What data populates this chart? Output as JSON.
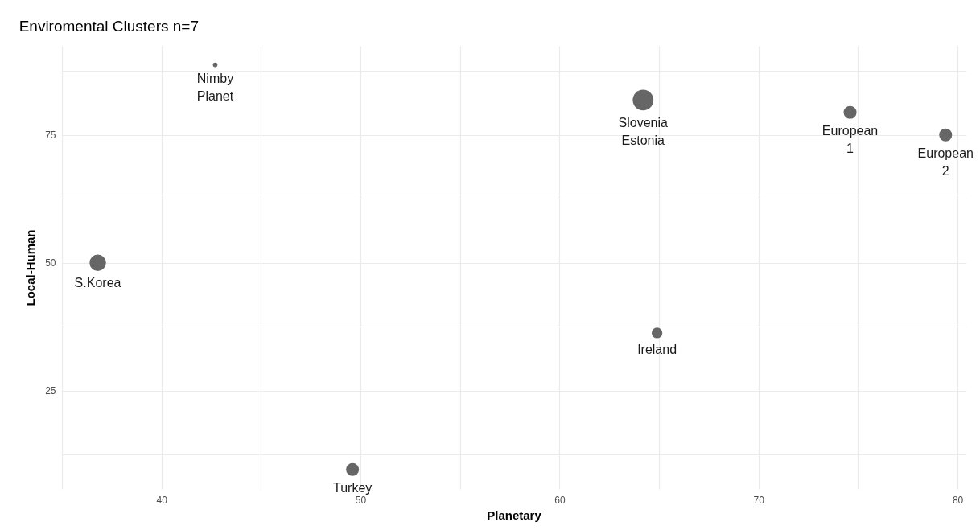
{
  "chart_data": {
    "type": "bubble",
    "title": "Enviromental Clusters n=7",
    "xlabel": "Planetary",
    "ylabel": "Local-Human",
    "xlim": [
      35,
      80.4
    ],
    "ylim": [
      5.8,
      92.4
    ],
    "xticks": [
      {
        "value": 35,
        "label": null
      },
      40,
      {
        "value": 45,
        "label": null
      },
      50,
      {
        "value": 55,
        "label": null
      },
      60,
      {
        "value": 65,
        "label": null
      },
      70,
      {
        "value": 75,
        "label": null
      },
      80
    ],
    "yticks": [
      {
        "value": 12.5,
        "label": null
      },
      25,
      {
        "value": 37.5,
        "label": null
      },
      50,
      {
        "value": 62.5,
        "label": null
      },
      75,
      {
        "value": 87.5,
        "label": null
      }
    ],
    "grid": true,
    "legend": false,
    "marker": "circle",
    "series": [
      {
        "name": "Nimby Planet",
        "color": "#666666",
        "x": [
          42.7
        ],
        "values": [
          88.7
        ],
        "sizes": [
          0.05
        ]
      },
      {
        "name": "Slovenia Estonia",
        "color": "#666666",
        "x": [
          64.2
        ],
        "values": [
          81.8
        ],
        "sizes": [
          1
        ]
      },
      {
        "name": "European 1",
        "color": "#666666",
        "x": [
          74.6
        ],
        "values": [
          79.4
        ],
        "sizes": [
          0.39
        ]
      },
      {
        "name": "European 2",
        "color": "#666666",
        "x": [
          79.4
        ],
        "values": [
          75
        ],
        "sizes": [
          0.39
        ]
      },
      {
        "name": "S.Korea",
        "color": "#666666",
        "x": [
          36.8
        ],
        "values": [
          50
        ],
        "sizes": [
          0.63
        ]
      },
      {
        "name": "Ireland",
        "color": "#666666",
        "x": [
          64.9
        ],
        "values": [
          36.3
        ],
        "sizes": [
          0.27
        ]
      },
      {
        "name": "Turkey",
        "color": "#666666",
        "x": [
          49.6
        ],
        "values": [
          9.6
        ],
        "sizes": [
          0.39
        ]
      }
    ]
  }
}
